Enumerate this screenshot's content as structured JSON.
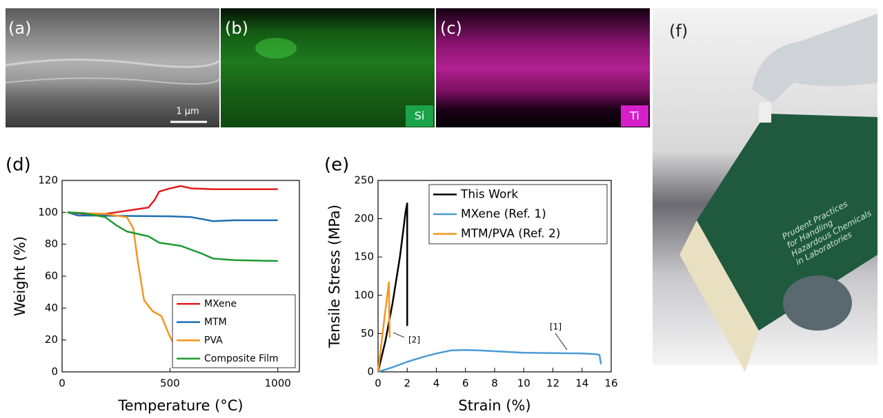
{
  "images": [
    {
      "label": "(a)",
      "scale_bar": "1 µm"
    },
    {
      "label": "(b)",
      "element": "Si"
    },
    {
      "label": "(c)",
      "element": "Ti"
    },
    {
      "label": "(f)",
      "book_text": [
        "Prudent Practices",
        "for Handling",
        "Hazardous Chemicals",
        "in Laboratories"
      ]
    }
  ],
  "chart_data": [
    {
      "type": "line",
      "panel": "(d)",
      "xlabel": "Temperature (°C)",
      "ylabel": "Weight (%)",
      "xlim": [
        0,
        1100
      ],
      "xticks": [
        0,
        500,
        1000
      ],
      "ylim": [
        0,
        120
      ],
      "yticks": [
        0,
        20,
        40,
        60,
        80,
        100,
        120
      ],
      "grid": false,
      "legend": "lower right",
      "series": [
        {
          "name": "MXene",
          "color": "#e41a1c",
          "x": [
            25,
            100,
            200,
            250,
            300,
            400,
            430,
            450,
            500,
            550,
            600,
            700,
            1000
          ],
          "values": [
            100,
            99,
            99,
            100,
            101,
            103,
            108,
            113,
            115,
            116.5,
            115,
            114.5,
            114.5
          ]
        },
        {
          "name": "MTM",
          "color": "#1f6db3",
          "x": [
            25,
            75,
            100,
            500,
            600,
            700,
            800,
            1000
          ],
          "values": [
            100,
            98,
            98,
            97.5,
            97,
            94.5,
            95,
            95
          ]
        },
        {
          "name": "PVA",
          "color": "#f7941d",
          "x": [
            25,
            100,
            200,
            300,
            330,
            350,
            380,
            420,
            460,
            500,
            530,
            550,
            600,
            800,
            1000
          ],
          "values": [
            100,
            99.5,
            99,
            97,
            90,
            70,
            45,
            38,
            35,
            22,
            15,
            4,
            3,
            3.5,
            3
          ]
        },
        {
          "name": "Composite Film",
          "color": "#1a9a31",
          "x": [
            25,
            100,
            200,
            250,
            300,
            400,
            450,
            550,
            650,
            700,
            800,
            1000
          ],
          "values": [
            100,
            99.5,
            97,
            92,
            88,
            85,
            81,
            79,
            74,
            71,
            70,
            69.5
          ]
        }
      ]
    },
    {
      "type": "line",
      "panel": "(e)",
      "xlabel": "Strain (%)",
      "ylabel": "Tensile Stress (MPa)",
      "xlim": [
        0,
        16
      ],
      "xticks": [
        0,
        2,
        4,
        6,
        8,
        10,
        12,
        14,
        16
      ],
      "ylim": [
        0,
        250
      ],
      "yticks": [
        0,
        50,
        100,
        150,
        200,
        250
      ],
      "grid": false,
      "legend": "upper right",
      "annotations": [
        "[2]",
        "[1]"
      ],
      "series": [
        {
          "name": "This Work",
          "color": "#000000",
          "x": [
            0,
            0.5,
            1,
            1.5,
            1.9,
            2.0,
            2.0
          ],
          "values": [
            0,
            40,
            90,
            150,
            210,
            220,
            60
          ]
        },
        {
          "name": "MXene (Ref. 1)",
          "color": "#4a9ad4",
          "x": [
            0,
            1,
            2,
            3,
            4,
            5,
            6,
            7,
            8,
            10,
            12,
            14,
            15,
            15.2,
            15.3
          ],
          "values": [
            0,
            6,
            13,
            19,
            24,
            28,
            28.5,
            28,
            27,
            25,
            24.5,
            24,
            23,
            22,
            10
          ]
        },
        {
          "name": "MTM/PVA (Ref. 2)",
          "color": "#f7941d",
          "x": [
            0,
            0.5,
            0.75,
            0.78,
            0.8
          ],
          "values": [
            0,
            80,
            117,
            60,
            45
          ]
        }
      ]
    }
  ]
}
